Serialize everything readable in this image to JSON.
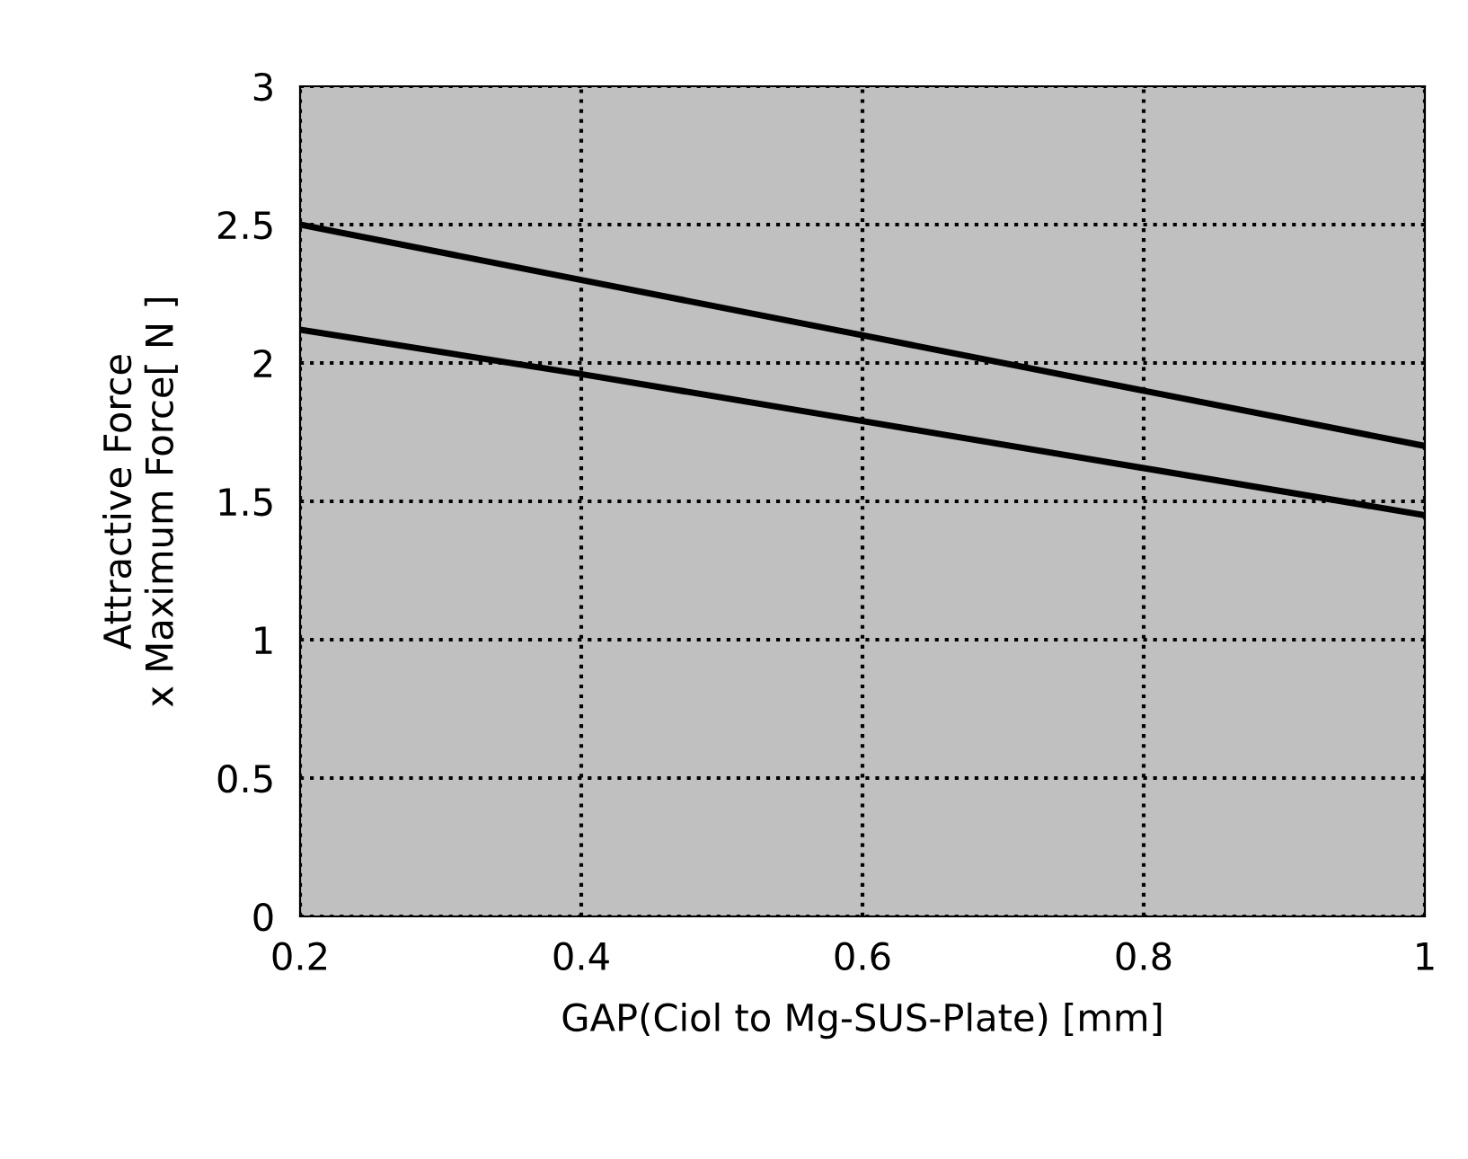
{
  "chart_data": {
    "type": "line",
    "xlabel": "GAP(Ciol to Mg-SUS-Plate) [mm]",
    "ylabel": "Attractive Force\nx Maximum Force[ N ]",
    "x": [
      0.2,
      0.4,
      0.6,
      0.8,
      1.0
    ],
    "series": [
      {
        "color": "#000000",
        "values": [
          2.5,
          2.3,
          2.1,
          1.9,
          1.7
        ]
      },
      {
        "color": "#000000",
        "values": [
          2.12,
          1.96,
          1.79,
          1.62,
          1.45
        ]
      }
    ],
    "xlim": [
      0.2,
      1
    ],
    "ylim": [
      0,
      3
    ],
    "xticks": [
      0.2,
      0.4,
      0.6,
      0.8,
      1
    ],
    "yticks": [
      0,
      0.5,
      1,
      1.5,
      2,
      2.5,
      3
    ],
    "grid": true,
    "legend": false,
    "marker": "none",
    "line_style": "solid"
  }
}
